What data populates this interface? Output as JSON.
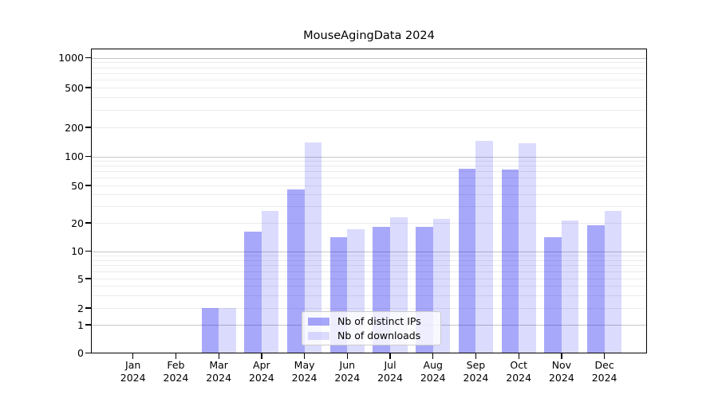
{
  "chart_data": {
    "type": "bar",
    "title": "MouseAgingData 2024",
    "categories": [
      "Jan 2024",
      "Feb 2024",
      "Mar 2024",
      "Apr 2024",
      "May 2024",
      "Jun 2024",
      "Jul 2024",
      "Aug 2024",
      "Sep 2024",
      "Oct 2024",
      "Nov 2024",
      "Dec 2024"
    ],
    "series": [
      {
        "name": "Nb of distinct IPs",
        "color": "#0000f057",
        "values": [
          0,
          0,
          2,
          16,
          45,
          14,
          18,
          18,
          75,
          73,
          14,
          19
        ]
      },
      {
        "name": "Nb of downloads",
        "color": "#0000f024",
        "values": [
          0,
          0,
          2,
          27,
          140,
          17,
          23,
          22,
          146,
          137,
          21,
          27
        ]
      }
    ],
    "yscale": "symlog",
    "yticks": [
      0,
      1,
      2,
      5,
      10,
      20,
      50,
      100,
      200,
      500,
      1000
    ],
    "ylim": [
      0,
      1250
    ],
    "xlabel": "",
    "ylabel": "",
    "grid": true,
    "legend_position": "lower center"
  }
}
